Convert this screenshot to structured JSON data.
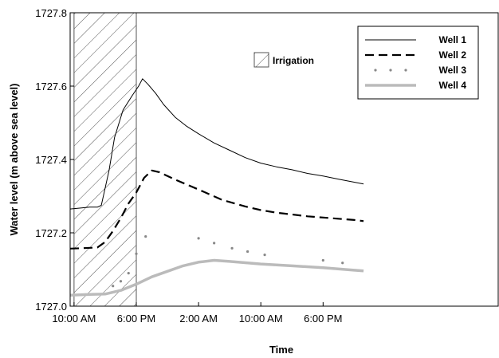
{
  "chart_data": {
    "type": "line",
    "title": "",
    "xlabel": "Time",
    "ylabel": "Water level (m above sea level)",
    "x_unit": "hours from 10:00 AM",
    "x_range": [
      -0.5,
      54.5
    ],
    "ylim": [
      1727.0,
      1727.8
    ],
    "x_ticks": [
      {
        "x": 0,
        "label": "10:00 AM"
      },
      {
        "x": 8,
        "label": "6:00 PM"
      },
      {
        "x": 16,
        "label": "2:00 AM"
      },
      {
        "x": 24,
        "label": "10:00 AM"
      },
      {
        "x": 32,
        "label": "6:00 PM"
      }
    ],
    "y_ticks": [
      {
        "y": 1727.0,
        "label": "1727.0"
      },
      {
        "y": 1727.2,
        "label": "1727.2"
      },
      {
        "y": 1727.4,
        "label": "1727.4"
      },
      {
        "y": 1727.6,
        "label": "1727.6"
      },
      {
        "y": 1727.8,
        "label": "1727.8"
      }
    ],
    "irrigation": {
      "label": "Irrigation",
      "x_start": 0,
      "x_end": 8
    },
    "series": [
      {
        "name": "Well 1",
        "style": "solid",
        "color": "#000000",
        "points": [
          [
            -0.5,
            1727.265
          ],
          [
            1,
            1727.268
          ],
          [
            2,
            1727.27
          ],
          [
            3,
            1727.27
          ],
          [
            3.5,
            1727.275
          ],
          [
            4.5,
            1727.37
          ],
          [
            5.2,
            1727.46
          ],
          [
            6.3,
            1727.535
          ],
          [
            7.5,
            1727.575
          ],
          [
            8.3,
            1727.6
          ],
          [
            8.8,
            1727.62
          ],
          [
            9.5,
            1727.605
          ],
          [
            10.5,
            1727.58
          ],
          [
            11.5,
            1727.55
          ],
          [
            13,
            1727.515
          ],
          [
            14.5,
            1727.49
          ],
          [
            16,
            1727.47
          ],
          [
            18,
            1727.445
          ],
          [
            20,
            1727.425
          ],
          [
            22,
            1727.405
          ],
          [
            24,
            1727.39
          ],
          [
            26,
            1727.38
          ],
          [
            28,
            1727.372
          ],
          [
            30,
            1727.362
          ],
          [
            32,
            1727.355
          ],
          [
            34,
            1727.346
          ],
          [
            36,
            1727.338
          ],
          [
            37.2,
            1727.333
          ]
        ]
      },
      {
        "name": "Well 2",
        "style": "dashed",
        "color": "#000000",
        "points": [
          [
            -0.5,
            1727.157
          ],
          [
            1,
            1727.158
          ],
          [
            3,
            1727.16
          ],
          [
            4,
            1727.175
          ],
          [
            5,
            1727.205
          ],
          [
            6,
            1727.24
          ],
          [
            7,
            1727.28
          ],
          [
            8,
            1727.31
          ],
          [
            9,
            1727.35
          ],
          [
            10,
            1727.37
          ],
          [
            11,
            1727.365
          ],
          [
            13,
            1727.345
          ],
          [
            16,
            1727.318
          ],
          [
            19,
            1727.29
          ],
          [
            22,
            1727.272
          ],
          [
            24,
            1727.262
          ],
          [
            26,
            1727.255
          ],
          [
            28,
            1727.25
          ],
          [
            30,
            1727.245
          ],
          [
            33,
            1727.24
          ],
          [
            36,
            1727.235
          ],
          [
            37.2,
            1727.232
          ]
        ]
      },
      {
        "name": "Well 3",
        "style": "dots",
        "color": "#888888",
        "points": [
          [
            5,
            1727.055
          ],
          [
            6,
            1727.068
          ],
          [
            7,
            1727.09
          ],
          [
            8,
            1727.143
          ],
          [
            9.2,
            1727.19
          ],
          [
            16,
            1727.185
          ],
          [
            18,
            1727.172
          ],
          [
            20.3,
            1727.158
          ],
          [
            22.3,
            1727.149
          ],
          [
            24.5,
            1727.14
          ],
          [
            32,
            1727.125
          ],
          [
            34.5,
            1727.118
          ]
        ]
      },
      {
        "name": "Well 4",
        "style": "thick-solid",
        "color": "#bbbbbb",
        "points": [
          [
            -0.5,
            1727.03
          ],
          [
            2,
            1727.032
          ],
          [
            4,
            1727.033
          ],
          [
            6,
            1727.043
          ],
          [
            8,
            1727.06
          ],
          [
            10,
            1727.08
          ],
          [
            12,
            1727.095
          ],
          [
            14,
            1727.11
          ],
          [
            16,
            1727.12
          ],
          [
            18,
            1727.125
          ],
          [
            20,
            1727.122
          ],
          [
            24,
            1727.115
          ],
          [
            28,
            1727.11
          ],
          [
            32,
            1727.105
          ],
          [
            36,
            1727.098
          ],
          [
            37.2,
            1727.096
          ]
        ]
      }
    ],
    "legend": {
      "position": "top-right",
      "entries": [
        "Well 1",
        "Well 2",
        "Well 3",
        "Well 4"
      ]
    },
    "grid": false
  }
}
